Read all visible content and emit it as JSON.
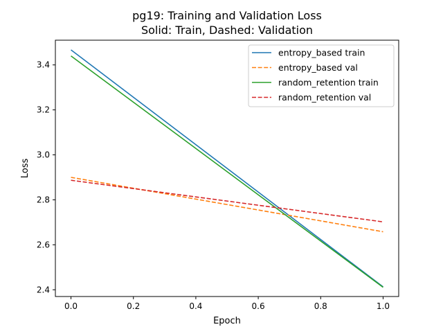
{
  "chart_data": {
    "type": "line",
    "title": "pg19: Training and Validation Loss",
    "subtitle": "Solid: Train, Dashed: Validation",
    "xlabel": "Epoch",
    "ylabel": "Loss",
    "xlim": [
      -0.05,
      1.05
    ],
    "ylim": [
      2.37,
      3.51
    ],
    "xticks": [
      "0.0",
      "0.2",
      "0.4",
      "0.6",
      "0.8",
      "1.0"
    ],
    "yticks": [
      "2.4",
      "2.6",
      "2.8",
      "3.0",
      "3.2",
      "3.4"
    ],
    "grid": false,
    "legend_position": "top-right",
    "x": [
      0.0,
      1.0
    ],
    "series": [
      {
        "name": "entropy_based train",
        "values": [
          3.467,
          2.413
        ],
        "color": "#1f77b4",
        "style": "solid"
      },
      {
        "name": "entropy_based val",
        "values": [
          2.9,
          2.658
        ],
        "color": "#ff7f0e",
        "style": "dashed"
      },
      {
        "name": "random_retention train",
        "values": [
          3.44,
          2.411
        ],
        "color": "#2ca02c",
        "style": "solid"
      },
      {
        "name": "random_retention val",
        "values": [
          2.887,
          2.702
        ],
        "color": "#d62728",
        "style": "dashed"
      }
    ]
  }
}
